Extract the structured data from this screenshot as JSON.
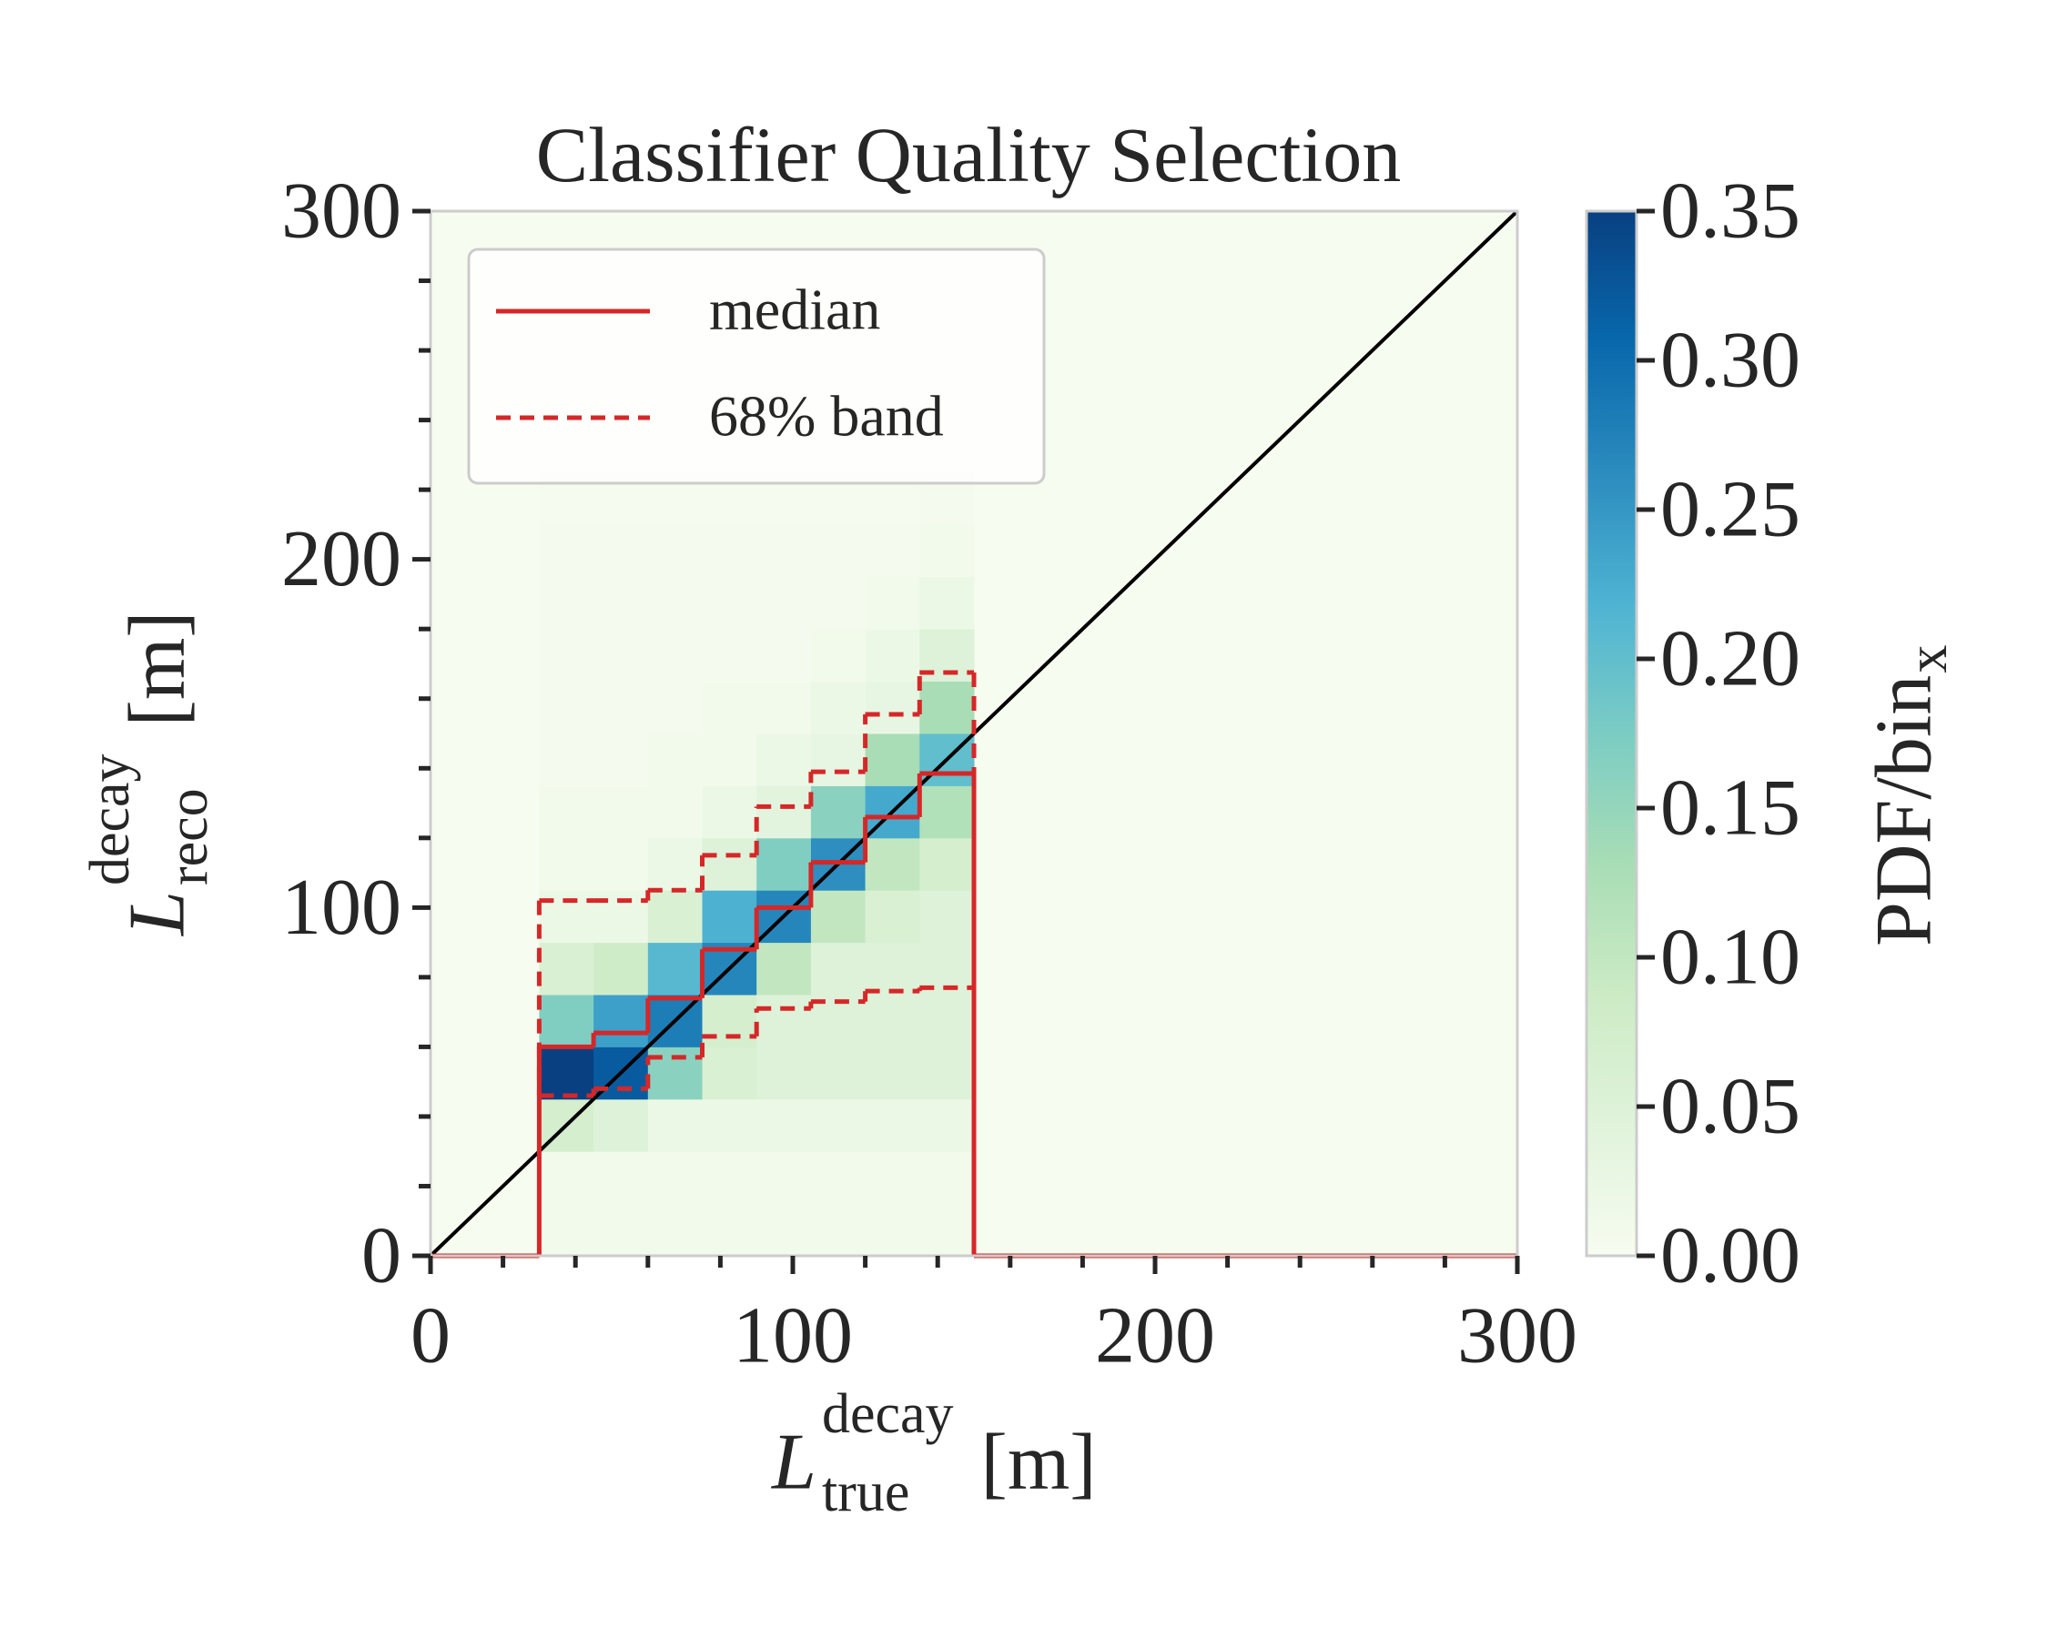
{
  "chart_data": {
    "type": "heatmap",
    "title": "Classifier Quality Selection",
    "x_label": {
      "symbol": "L",
      "sup": "decay",
      "sub": "true",
      "unit": "[m]"
    },
    "y_label": {
      "symbol": "L",
      "sup": "decay",
      "sub": "reco",
      "unit": "[m]"
    },
    "colorbar_label": {
      "text": "PDF/bin",
      "sub": "x"
    },
    "xlim": [
      0,
      300
    ],
    "ylim": [
      0,
      300
    ],
    "xticks": [
      0,
      100,
      200,
      300
    ],
    "yticks": [
      0,
      100,
      200,
      300
    ],
    "minor_step": 20,
    "clim": [
      0,
      0.35
    ],
    "cticks": [
      {
        "value": 0,
        "label": "0.00"
      },
      {
        "value": 0.05,
        "label": "0.05"
      },
      {
        "value": 0.1,
        "label": "0.10"
      },
      {
        "value": 0.15,
        "label": "0.15"
      },
      {
        "value": 0.2,
        "label": "0.20"
      },
      {
        "value": 0.25,
        "label": "0.25"
      },
      {
        "value": 0.3,
        "label": "0.30"
      },
      {
        "value": 0.35,
        "label": "0.35"
      }
    ],
    "colormap": [
      "#f7fcf0",
      "#e0f3db",
      "#ccebc5",
      "#a8ddb5",
      "#7bccc4",
      "#4eb3d3",
      "#2b8cbe",
      "#0868ac",
      "#084081"
    ],
    "xbins": [
      30,
      45,
      60,
      75,
      90,
      105,
      120,
      135,
      150
    ],
    "ybins": [
      0,
      15,
      30,
      45,
      60,
      75,
      90,
      105,
      120,
      135,
      150,
      165,
      180,
      195,
      210,
      225
    ],
    "z": [
      [
        0.01,
        0.01,
        0.07,
        0.35,
        0.17,
        0.06,
        0.02,
        0.01,
        0.01,
        0.005,
        0.005,
        0.005,
        0.005,
        0.005,
        0.003
      ],
      [
        0.01,
        0.01,
        0.05,
        0.32,
        0.24,
        0.08,
        0.02,
        0.01,
        0.01,
        0.005,
        0.005,
        0.005,
        0.005,
        0.005,
        0.003
      ],
      [
        0.01,
        0.01,
        0.02,
        0.16,
        0.28,
        0.21,
        0.06,
        0.02,
        0.01,
        0.01,
        0.005,
        0.005,
        0.005,
        0.005,
        0.003
      ],
      [
        0.01,
        0.01,
        0.02,
        0.06,
        0.07,
        0.27,
        0.22,
        0.05,
        0.02,
        0.01,
        0.01,
        0.005,
        0.005,
        0.005,
        0.003
      ],
      [
        0.01,
        0.01,
        0.02,
        0.05,
        0.05,
        0.1,
        0.27,
        0.17,
        0.04,
        0.02,
        0.01,
        0.005,
        0.005,
        0.005,
        0.003
      ],
      [
        0.01,
        0.01,
        0.02,
        0.05,
        0.05,
        0.05,
        0.1,
        0.26,
        0.16,
        0.03,
        0.02,
        0.01,
        0.005,
        0.005,
        0.003
      ],
      [
        0.01,
        0.01,
        0.02,
        0.05,
        0.05,
        0.05,
        0.06,
        0.1,
        0.23,
        0.13,
        0.03,
        0.02,
        0.01,
        0.005,
        0.003
      ],
      [
        0.01,
        0.01,
        0.02,
        0.05,
        0.05,
        0.05,
        0.05,
        0.07,
        0.12,
        0.2,
        0.13,
        0.05,
        0.02,
        0.01,
        0.005
      ]
    ],
    "diagonal_color": "#000000",
    "median": {
      "name": "median",
      "color": "#d62728",
      "bins": [
        0,
        30,
        45,
        60,
        75,
        90,
        105,
        120,
        135,
        150,
        300
      ],
      "values": [
        0,
        60,
        64,
        74,
        88,
        100,
        113,
        126,
        138.5,
        0
      ]
    },
    "band": {
      "name": "68% band",
      "color": "#d62728",
      "lower": [
        46,
        48,
        57,
        63,
        71,
        73,
        76,
        77
      ],
      "upper": [
        102,
        102,
        105,
        115,
        129,
        139,
        155.5,
        167.5
      ]
    },
    "legend": "upper left"
  }
}
